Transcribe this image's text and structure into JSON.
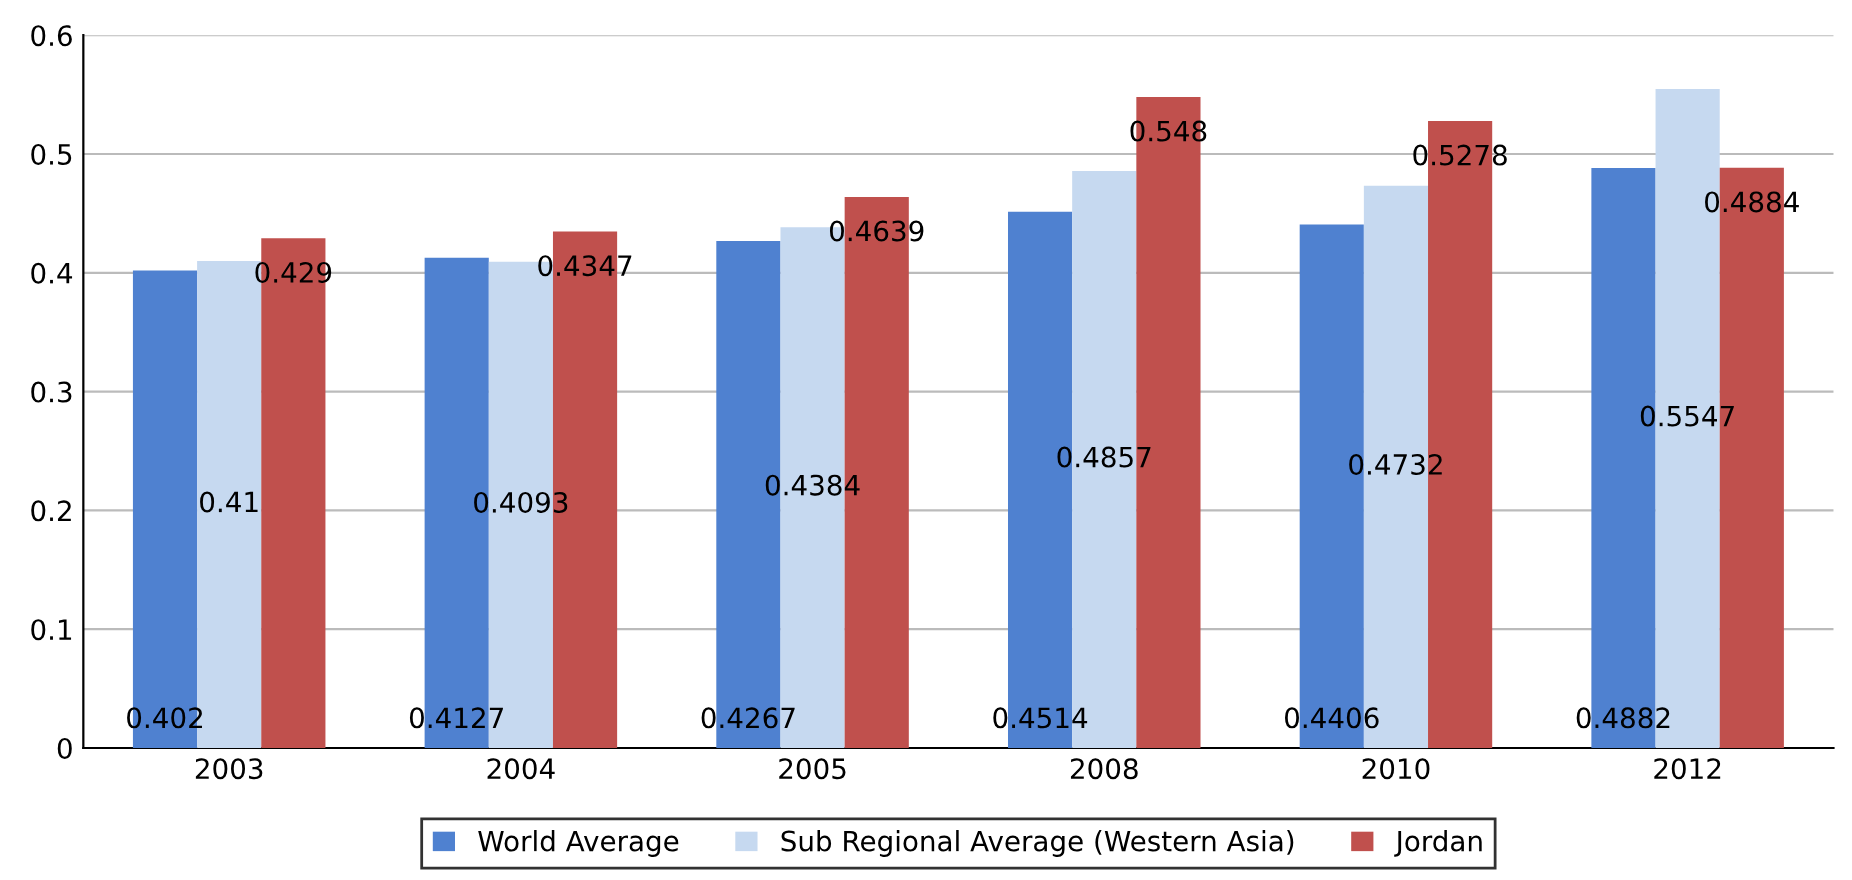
{
  "chart_data": {
    "type": "bar",
    "categories": [
      "2003",
      "2004",
      "2005",
      "2008",
      "2010",
      "2012"
    ],
    "series": [
      {
        "name": "World Average",
        "color": "#4f81d0",
        "values": [
          0.402,
          0.4127,
          0.4267,
          0.4514,
          0.4406,
          0.4882
        ]
      },
      {
        "name": "Sub Regional Average (Western Asia)",
        "color": "#c6d9f0",
        "values": [
          0.41,
          0.4093,
          0.4384,
          0.4857,
          0.4732,
          0.5547
        ]
      },
      {
        "name": "Jordan",
        "color": "#c0504d",
        "values": [
          0.429,
          0.4347,
          0.4639,
          0.548,
          0.5278,
          0.4884
        ]
      }
    ],
    "ylim": [
      0,
      0.6
    ],
    "yticks": [
      0,
      0.1,
      0.2,
      0.3,
      0.4,
      0.5,
      0.6
    ],
    "grid": "y",
    "legend": "bottom",
    "data_labels": true
  }
}
